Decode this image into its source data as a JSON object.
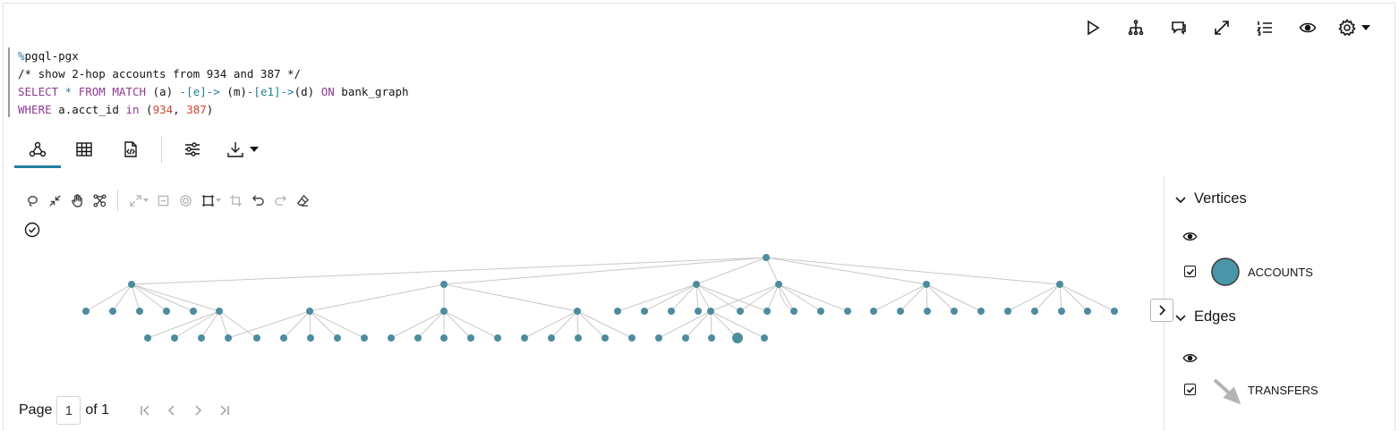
{
  "toolbar": {
    "buttons": [
      "run-icon",
      "hierarchy-icon",
      "comments-icon",
      "expand-icon",
      "numbered-list-icon",
      "view-icon",
      "settings-icon"
    ]
  },
  "code": {
    "line1": {
      "directive": "%",
      "rest": "pgql-pgx"
    },
    "line2": "/* show 2-hop accounts from 934 and 387 */",
    "line3": {
      "select": "SELECT",
      "star": " * ",
      "from": "FROM",
      "match": " MATCH",
      "a": " (a) ",
      "arrow1": "-[e]->",
      "m": " (m)",
      "arrow2": "-[e1]->",
      "d": "(d) ",
      "on": "ON",
      "graph": " bank_graph"
    },
    "line4": {
      "where": "WHERE",
      "cond": " a.acct_id ",
      "in": "in",
      "open": " (",
      "v1": "934",
      "sep": ", ",
      "v2": "387",
      "close": ")"
    }
  },
  "view_tabs": [
    "graph-view-icon",
    "table-view-icon",
    "code-view-icon",
    "settings-sliders-icon",
    "download-icon"
  ],
  "pager": {
    "page_label": "Page",
    "page_value": "1",
    "of_label": "of 1"
  },
  "legend": {
    "vertices_title": "Vertices",
    "vertex_label": "ACCOUNTS",
    "vertex_color": "#4a96a8",
    "edges_title": "Edges",
    "edge_label": "TRANSFERS",
    "edge_color": "#b4b4b4"
  },
  "graph": {
    "node_color": "#4c8c9e",
    "edge_color": "#c9c9c9"
  }
}
